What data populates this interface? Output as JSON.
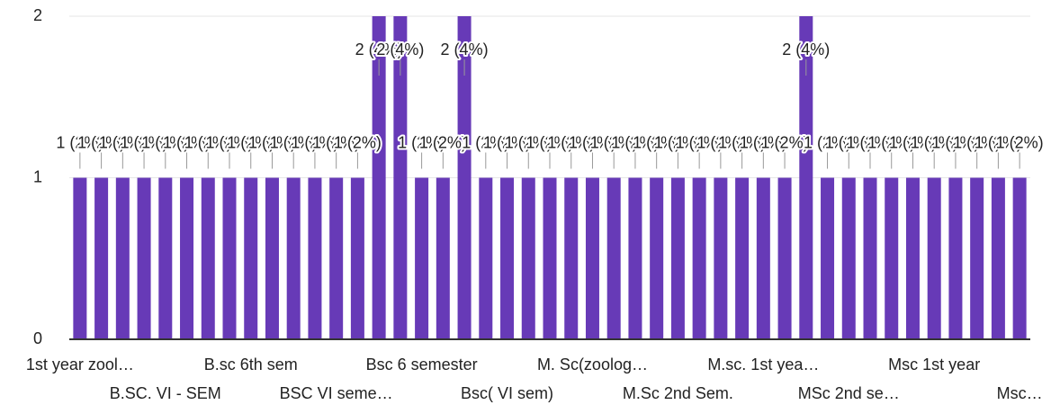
{
  "chart_data": {
    "type": "bar",
    "categories": [
      "1st year zool…",
      null,
      null,
      null,
      "B.SC. VI - SEM",
      null,
      null,
      null,
      "B.sc 6th sem",
      null,
      null,
      null,
      "BSC VI seme…",
      null,
      null,
      null,
      "Bsc 6 semester",
      null,
      null,
      null,
      "Bsc( VI sem)",
      null,
      null,
      null,
      "M. Sc(zoolog…",
      null,
      null,
      null,
      "M.Sc 2nd Sem.",
      null,
      null,
      null,
      "M.sc. 1st yea…",
      null,
      null,
      null,
      "MSc 2nd se…",
      null,
      null,
      null,
      "Msc 1st year",
      null,
      null,
      null,
      "Msc…"
    ],
    "values": [
      1,
      1,
      1,
      1,
      1,
      1,
      1,
      1,
      1,
      1,
      1,
      1,
      1,
      1,
      2,
      2,
      1,
      1,
      2,
      1,
      1,
      1,
      1,
      1,
      1,
      1,
      1,
      1,
      1,
      1,
      1,
      1,
      1,
      1,
      2,
      1,
      1,
      1,
      1,
      1,
      1,
      1,
      1,
      1,
      1
    ],
    "value_labels": [
      "1 (2%)",
      "1 (2%)",
      "1 (2%)",
      "1 (2%)",
      "1 (2%)",
      "1 (2%)",
      "1 (2%)",
      "1 (2%)",
      "1 (2%)",
      "1 (2%)",
      "1 (2%)",
      "1 (2%)",
      "1 (2%)",
      "1 (2%)",
      "2 (4%)",
      "2 (4%)",
      "1 (2%)",
      "1 (2%)",
      "2 (4%)",
      "1 (2%)",
      "1 (2%)",
      "1 (2%)",
      "1 (2%)",
      "1 (2%)",
      "1 (2%)",
      "1 (2%)",
      "1 (2%)",
      "1 (2%)",
      "1 (2%)",
      "1 (2%)",
      "1 (2%)",
      "1 (2%)",
      "1 (2%)",
      "1 (2%)",
      "2 (4%)",
      "1 (2%)",
      "1 (2%)",
      "1 (2%)",
      "1 (2%)",
      "1 (2%)",
      "1 (2%)",
      "1 (2%)",
      "1 (2%)",
      "1 (2%)",
      "1 (2%)"
    ],
    "color": "#673ab7",
    "ylim": [
      0,
      2
    ],
    "yticks": [
      0,
      1,
      2
    ],
    "grid": true
  }
}
